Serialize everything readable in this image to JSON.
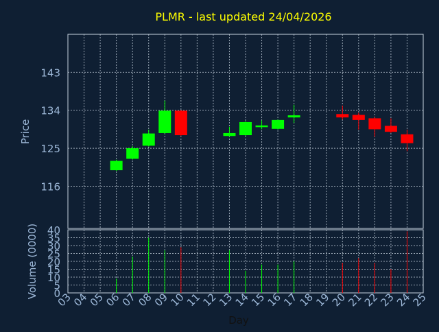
{
  "chart_data": [
    {
      "type": "candlestick",
      "title": "PLMR - last updated 24/04/2026",
      "ylabel": "Price",
      "ylim": [
        106,
        152
      ],
      "yticks": [
        116,
        125,
        134,
        143
      ],
      "grid": true,
      "colors": {
        "up": "#00ff00",
        "down": "#ff0000",
        "title": "#ffff00",
        "axis_text": "#9db8d8",
        "grid": "#c8d4e0",
        "background": "#0f1f33"
      },
      "candles": [
        {
          "day": "06",
          "open": 119.8,
          "high": 122.3,
          "low": 119.6,
          "close": 122.0
        },
        {
          "day": "07",
          "open": 122.5,
          "high": 125.5,
          "low": 122.3,
          "close": 125.0
        },
        {
          "day": "08",
          "open": 125.6,
          "high": 129.4,
          "low": 125.4,
          "close": 128.5
        },
        {
          "day": "09",
          "open": 128.6,
          "high": 136.3,
          "low": 128.4,
          "close": 133.9
        },
        {
          "day": "10",
          "open": 133.9,
          "high": 134.0,
          "low": 127.9,
          "close": 128.1
        },
        {
          "day": "13",
          "open": 127.9,
          "high": 130.1,
          "low": 127.7,
          "close": 128.6
        },
        {
          "day": "14",
          "open": 128.1,
          "high": 131.4,
          "low": 127.9,
          "close": 131.2
        },
        {
          "day": "15",
          "open": 130.0,
          "high": 131.6,
          "low": 129.5,
          "close": 130.4
        },
        {
          "day": "16",
          "open": 129.6,
          "high": 131.8,
          "low": 129.4,
          "close": 131.7
        },
        {
          "day": "17",
          "open": 132.3,
          "high": 135.3,
          "low": 131.0,
          "close": 132.8
        },
        {
          "day": "20",
          "open": 133.1,
          "high": 135.1,
          "low": 131.8,
          "close": 132.3
        },
        {
          "day": "21",
          "open": 132.9,
          "high": 133.4,
          "low": 129.4,
          "close": 131.7
        },
        {
          "day": "22",
          "open": 132.1,
          "high": 132.4,
          "low": 127.7,
          "close": 129.5
        },
        {
          "day": "23",
          "open": 130.3,
          "high": 132.1,
          "low": 128.6,
          "close": 128.9
        },
        {
          "day": "24",
          "open": 128.3,
          "high": 129.4,
          "low": 124.3,
          "close": 126.2
        }
      ]
    },
    {
      "type": "bar",
      "ylabel": "Volume (0000)",
      "xlabel": "Day",
      "ylim": [
        0,
        40
      ],
      "yticks": [
        0,
        5,
        10,
        15,
        20,
        25,
        30,
        35,
        40
      ],
      "categories": [
        "03",
        "04",
        "05",
        "06",
        "07",
        "08",
        "09",
        "10",
        "11",
        "12",
        "13",
        "14",
        "15",
        "16",
        "17",
        "18",
        "19",
        "20",
        "21",
        "22",
        "23",
        "24",
        "25"
      ],
      "bars": [
        {
          "day": "06",
          "value": 9,
          "direction": "up"
        },
        {
          "day": "07",
          "value": 23,
          "direction": "up"
        },
        {
          "day": "08",
          "value": 35,
          "direction": "up"
        },
        {
          "day": "09",
          "value": 27,
          "direction": "up"
        },
        {
          "day": "10",
          "value": 29,
          "direction": "down"
        },
        {
          "day": "13",
          "value": 27,
          "direction": "up"
        },
        {
          "day": "14",
          "value": 14,
          "direction": "up"
        },
        {
          "day": "15",
          "value": 18,
          "direction": "up"
        },
        {
          "day": "16",
          "value": 18,
          "direction": "up"
        },
        {
          "day": "17",
          "value": 20,
          "direction": "up"
        },
        {
          "day": "20",
          "value": 19,
          "direction": "down"
        },
        {
          "day": "21",
          "value": 22,
          "direction": "down"
        },
        {
          "day": "22",
          "value": 19,
          "direction": "down"
        },
        {
          "day": "23",
          "value": 15,
          "direction": "down"
        },
        {
          "day": "24",
          "value": 39,
          "direction": "down"
        }
      ]
    }
  ]
}
